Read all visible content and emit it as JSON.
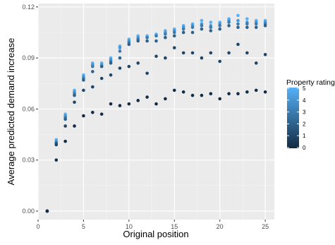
{
  "chart_data": {
    "type": "scatter",
    "xlabel": "Original position",
    "ylabel": "Average predicted demand increase",
    "xlim": [
      0,
      26
    ],
    "ylim": [
      -0.005,
      0.122
    ],
    "x_ticks": [
      0,
      5,
      10,
      15,
      20,
      25
    ],
    "x_tick_labels": [
      "0",
      "5",
      "10",
      "15",
      "20",
      "25"
    ],
    "y_ticks": [
      0.0,
      0.03,
      0.06,
      0.09,
      0.12
    ],
    "y_tick_labels": [
      "0.00",
      "0.03",
      "0.06",
      "0.09",
      "0.12"
    ],
    "grid": true,
    "legend": {
      "title": "Property rating",
      "placement": "right",
      "ticks": [
        0,
        1,
        2,
        3,
        4,
        5
      ],
      "tick_labels": [
        "0",
        "1",
        "2",
        "3",
        "4",
        "5"
      ],
      "color_low": "#132B43",
      "color_high": "#56B1F7"
    },
    "x": [
      1,
      2,
      3,
      4,
      5,
      6,
      7,
      8,
      9,
      10,
      11,
      12,
      13,
      14,
      15,
      16,
      17,
      18,
      19,
      20,
      21,
      22,
      23,
      24,
      25
    ],
    "series": [
      {
        "rating": 0,
        "values": [
          0.0,
          0.03,
          0.041,
          0.05,
          0.056,
          0.058,
          0.057,
          0.063,
          0.062,
          0.063,
          0.065,
          0.067,
          0.063,
          0.066,
          0.071,
          0.07,
          0.068,
          0.068,
          0.069,
          0.066,
          0.069,
          0.069,
          0.07,
          0.071,
          0.07
        ]
      },
      {
        "rating": 1,
        "values": [
          0.0,
          0.039,
          0.05,
          0.064,
          0.071,
          0.073,
          0.078,
          0.08,
          0.084,
          0.085,
          0.087,
          0.081,
          0.091,
          0.09,
          0.096,
          0.093,
          0.093,
          0.09,
          0.093,
          0.088,
          0.093,
          0.098,
          0.093,
          0.087,
          0.092
        ]
      },
      {
        "rating": 2,
        "values": [
          0.0,
          0.04,
          0.054,
          0.068,
          0.077,
          0.082,
          0.085,
          0.087,
          0.09,
          0.098,
          0.1,
          0.1,
          0.1,
          0.102,
          0.103,
          0.105,
          0.105,
          0.107,
          0.106,
          0.107,
          0.109,
          0.108,
          0.108,
          0.108,
          0.109
        ]
      },
      {
        "rating": 3,
        "values": [
          0.0,
          0.04,
          0.055,
          0.069,
          0.078,
          0.085,
          0.085,
          0.088,
          0.094,
          0.099,
          0.101,
          0.102,
          0.103,
          0.104,
          0.105,
          0.107,
          0.108,
          0.109,
          0.108,
          0.109,
          0.111,
          0.11,
          0.11,
          0.11,
          0.11
        ]
      },
      {
        "rating": 4,
        "values": [
          0.0,
          0.041,
          0.056,
          0.07,
          0.079,
          0.086,
          0.086,
          0.089,
          0.096,
          0.1,
          0.102,
          0.102,
          0.103,
          0.105,
          0.106,
          0.108,
          0.109,
          0.11,
          0.109,
          0.11,
          0.112,
          0.112,
          0.111,
          0.111,
          0.111
        ]
      },
      {
        "rating": 5,
        "values": [
          0.0,
          0.042,
          0.057,
          0.071,
          0.08,
          0.087,
          0.087,
          0.09,
          0.097,
          0.101,
          0.103,
          0.103,
          0.104,
          0.106,
          0.107,
          0.109,
          0.11,
          0.112,
          0.111,
          0.111,
          0.113,
          0.115,
          0.113,
          0.112,
          0.112
        ]
      }
    ]
  }
}
